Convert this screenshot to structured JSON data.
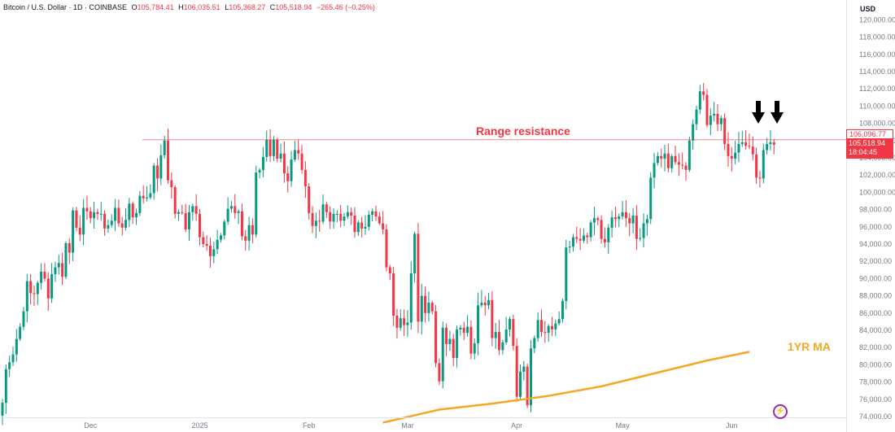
{
  "header": {
    "symbol": "Bitcoin / U.S. Dollar · 1D · COINBASE",
    "o_label": "O",
    "o_value": "105,784.41",
    "h_label": "H",
    "h_value": "106,035.51",
    "l_label": "L",
    "l_value": "105,368.27",
    "c_label": "C",
    "c_value": "105,518.94",
    "change": "−265.46 (−0.25%)"
  },
  "currency_label": "USD",
  "price_tags": {
    "resistance": "106,096.77",
    "last_price": "105,518.94",
    "countdown": "18:04:45"
  },
  "annotations": {
    "range_resistance": "Range resistance",
    "ma_label": "1YR MA",
    "arrow_icon": "down-arrow-icon"
  },
  "colors": {
    "up": "#089981",
    "down": "#f23645",
    "resistance": "#f23645",
    "ma": "#f5a623",
    "axis_text": "#787b86"
  },
  "chart_data": {
    "type": "candlestick",
    "title": "",
    "xlabel": "",
    "ylabel": "",
    "ylim": [
      74000,
      122000
    ],
    "y_ticks": [
      "74,000.00",
      "76,000.00",
      "78,000.00",
      "80,000.00",
      "82,000.00",
      "84,000.00",
      "86,000.00",
      "88,000.00",
      "90,000.00",
      "92,000.00",
      "94,000.00",
      "96,000.00",
      "98,000.00",
      "100,000.00",
      "102,000.00",
      "104,000.00",
      "106,000.00",
      "108,000.00",
      "110,000.00",
      "112,000.00",
      "114,000.00",
      "116,000.00",
      "118,000.00",
      "120,000.00"
    ],
    "x_ticks": [
      {
        "date": "2024-12-01",
        "label": "Dec"
      },
      {
        "date": "2025-01-01",
        "label": "2025"
      },
      {
        "date": "2025-02-01",
        "label": "Feb"
      },
      {
        "date": "2025-03-01",
        "label": "Mar"
      },
      {
        "date": "2025-04-01",
        "label": "Apr"
      },
      {
        "date": "2025-05-01",
        "label": "May"
      },
      {
        "date": "2025-06-01",
        "label": "Jun"
      }
    ],
    "x_start": "2024-11-06",
    "resistance_level": 106096.77,
    "last_price": 105518.94,
    "close": [
      75600,
      79500,
      80300,
      81200,
      83000,
      84400,
      86200,
      89700,
      88300,
      88200,
      89500,
      90800,
      90000,
      87700,
      90500,
      91300,
      91800,
      90200,
      94100,
      93000,
      97900,
      95900,
      95100,
      98200,
      97800,
      97000,
      97700,
      97500,
      97500,
      95800,
      96200,
      96700,
      98200,
      96400,
      95900,
      96800,
      98700,
      97100,
      97600,
      99600,
      99300,
      99400,
      99900,
      103100,
      101600,
      104300,
      106000,
      101400,
      100600,
      97500,
      97700,
      97600,
      95700,
      97700,
      98400,
      97500,
      94800,
      94000,
      93800,
      92600,
      93400,
      94500,
      95000,
      96600,
      98100,
      98400,
      97600,
      97800,
      94900,
      94400,
      96200,
      95100,
      102300,
      102600,
      104100,
      106100,
      104200,
      106100,
      103900,
      104500,
      102200,
      101300,
      103800,
      104900,
      104500,
      102600,
      100700,
      97600,
      96100,
      96700,
      96600,
      98600,
      97700,
      96600,
      97500,
      97500,
      96700,
      97200,
      97700,
      97300,
      95400,
      96500,
      95800,
      96000,
      97400,
      97800,
      97200,
      96400,
      95700,
      91300,
      90600,
      85700,
      84300,
      85400,
      84600,
      84900,
      90600,
      95200,
      85000,
      88000,
      86000,
      87200,
      86200,
      80200,
      78100,
      84300,
      82400,
      83000,
      80800,
      84100,
      84300,
      83700,
      84400,
      81300,
      82500,
      86900,
      87200,
      86900,
      87500,
      83100,
      83800,
      81700,
      82600,
      84100,
      85300,
      82200,
      76300,
      79200,
      79800,
      75300,
      81900,
      83100,
      85200,
      83800,
      83700,
      84500,
      84100,
      84800,
      85300,
      87400,
      93600,
      93700,
      94800,
      94600,
      94400,
      95000,
      94800,
      96500,
      97000,
      96800,
      94600,
      94200,
      95900,
      97100,
      96900,
      97200,
      97700,
      97000,
      96400,
      97300,
      94600,
      94700,
      96400,
      96900,
      101700,
      103400,
      104200,
      103900,
      104500,
      102800,
      104200,
      103500,
      103200,
      103100,
      102600,
      106000,
      107900,
      109600,
      111700,
      111300,
      107800,
      108900,
      109100,
      107900,
      108600,
      105600,
      104200,
      103900,
      104600,
      105600,
      105800,
      105400,
      105300,
      104400,
      101700,
      101600,
      104900,
      105600,
      105800,
      105519
    ],
    "series": [
      {
        "name": "1YR MA",
        "type": "line",
        "color": "#f5a623",
        "points": [
          {
            "date": "2025-02-22",
            "value": 73300
          },
          {
            "date": "2025-03-10",
            "value": 74800
          },
          {
            "date": "2025-03-25",
            "value": 75500
          },
          {
            "date": "2025-04-10",
            "value": 76400
          },
          {
            "date": "2025-04-25",
            "value": 77500
          },
          {
            "date": "2025-05-10",
            "value": 79000
          },
          {
            "date": "2025-05-25",
            "value": 80500
          },
          {
            "date": "2025-06-06",
            "value": 81500
          }
        ]
      }
    ]
  }
}
